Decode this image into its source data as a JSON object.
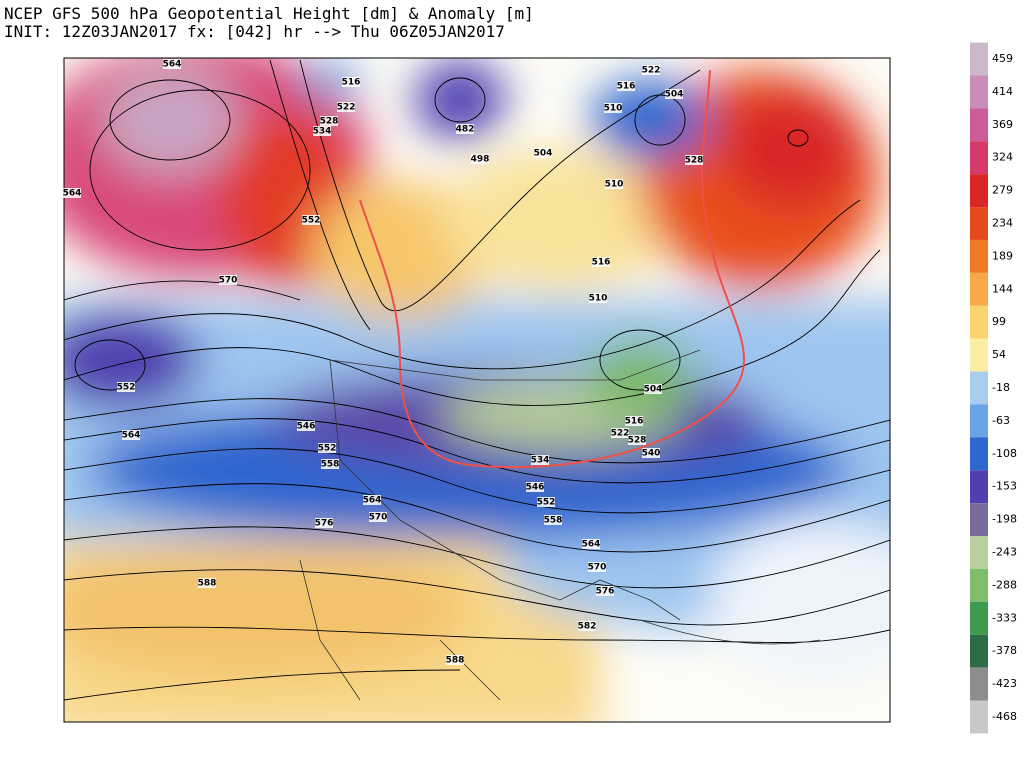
{
  "header": {
    "title": "NCEP GFS 500 hPa Geopotential Height [dm] & Anomaly [m]",
    "subtitle": "INIT: 12Z03JAN2017 fx: [042] hr --> Thu 06Z05JAN2017"
  },
  "contour_labels": [
    564,
    516,
    522,
    528,
    534,
    482,
    498,
    504,
    516,
    522,
    504,
    510,
    528,
    510,
    564,
    552,
    570,
    516,
    510,
    552,
    564,
    546,
    552,
    558,
    564,
    570,
    576,
    504,
    516,
    522,
    528,
    540,
    534,
    546,
    552,
    558,
    564,
    570,
    576,
    588,
    582,
    588
  ],
  "colorbar": {
    "ticks": [
      459,
      414,
      369,
      324,
      279,
      234,
      189,
      144,
      99,
      54,
      -18,
      -63,
      -108,
      -153,
      -198,
      -243,
      -288,
      -333,
      -378,
      -423,
      -468
    ],
    "colors": [
      "#cdb8cb",
      "#c98cb8",
      "#cc5b96",
      "#d43b6b",
      "#d92727",
      "#e64a1c",
      "#f07a28",
      "#f7a94a",
      "#f8d36e",
      "#fbeea2",
      "#a9cdf0",
      "#6aa3e6",
      "#2f66cf",
      "#4f3fb0",
      "#7a6aa0",
      "#b8cfa0",
      "#7fbd6a",
      "#3e9a4f",
      "#2d6b45",
      "#8d8d8d",
      "#c8c8c8"
    ]
  }
}
